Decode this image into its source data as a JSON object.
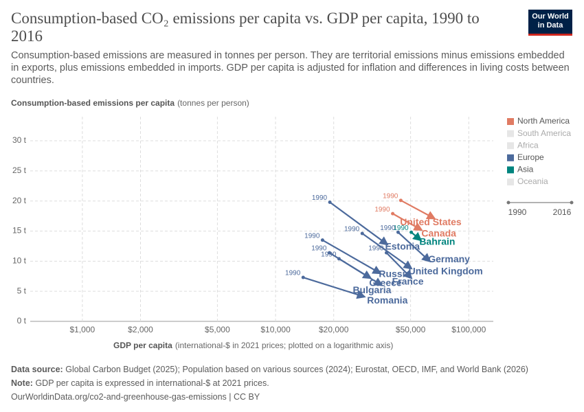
{
  "chart_data": {
    "type": "connected-scatter",
    "title": "Consumption-based CO₂ emissions per capita vs. GDP per capita, 1990 to 2016",
    "subtitle": "Consumption-based emissions are measured in tonnes per person. They are territorial emissions minus emissions embedded in exports, plus emissions embedded in imports. GDP per capita is adjusted for inflation and differences in living costs between countries.",
    "logo": [
      "Our World",
      "in Data"
    ],
    "y_label": "Consumption-based emissions per capita",
    "y_unit": "(tonnes per person)",
    "x_label": "GDP per capita",
    "x_unit": "(international-$ in 2021 prices; plotted on a logarithmic axis)",
    "xscale": "log",
    "xlim": [
      520,
      134000
    ],
    "xticks": [
      {
        "value": 1000,
        "label": "$1,000"
      },
      {
        "value": 2000,
        "label": "$2,000"
      },
      {
        "value": 5000,
        "label": "$5,000"
      },
      {
        "value": 10000,
        "label": "$10,000"
      },
      {
        "value": 20000,
        "label": "$20,000"
      },
      {
        "value": 50000,
        "label": "$50,000"
      },
      {
        "value": 100000,
        "label": "$100,000"
      }
    ],
    "ylim": [
      0,
      34
    ],
    "yticks": [
      {
        "value": 0,
        "label": "0 t"
      },
      {
        "value": 5,
        "label": "5 t"
      },
      {
        "value": 10,
        "label": "10 t"
      },
      {
        "value": 15,
        "label": "15 t"
      },
      {
        "value": 20,
        "label": "20 t"
      },
      {
        "value": 25,
        "label": "25 t"
      },
      {
        "value": 30,
        "label": "30 t"
      }
    ],
    "grid": true,
    "start_label": "1990",
    "timeline": [
      1990,
      2016
    ],
    "legend": [
      {
        "name": "North America",
        "color": "#e07b63"
      },
      {
        "name": "South America",
        "color": "#e6e6e6"
      },
      {
        "name": "Africa",
        "color": "#e6e6e6"
      },
      {
        "name": "Europe",
        "color": "#4c6a9c"
      },
      {
        "name": "Asia",
        "color": "#00847e"
      },
      {
        "name": "Oceania",
        "color": "#e6e6e6"
      }
    ],
    "series": [
      {
        "name": "United States",
        "color": "#e07b63",
        "x": [
          44500,
          66400
        ],
        "values": [
          20.1,
          17.1
        ]
      },
      {
        "name": "Canada",
        "color": "#e07b63",
        "x": [
          40400,
          56900
        ],
        "values": [
          17.9,
          15.2
        ]
      },
      {
        "name": "Bahrain",
        "color": "#00847e",
        "x": [
          50400,
          56400
        ],
        "values": [
          14.8,
          13.5
        ]
      },
      {
        "name": "Estonia",
        "color": "#4c6a9c",
        "x": [
          19100,
          37800
        ],
        "values": [
          19.8,
          12.8
        ]
      },
      {
        "name": "Germany",
        "color": "#4c6a9c",
        "x": [
          43100,
          62700
        ],
        "values": [
          14.8,
          10.0
        ]
      },
      {
        "name": "United Kingdom",
        "color": "#4c6a9c",
        "x": [
          28100,
          50400
        ],
        "values": [
          14.6,
          8.8
        ]
      },
      {
        "name": "France",
        "color": "#4c6a9c",
        "x": [
          37500,
          50400
        ],
        "values": [
          11.4,
          7.2
        ]
      },
      {
        "name": "Russia",
        "color": "#4c6a9c",
        "x": [
          17500,
          34800
        ],
        "values": [
          13.5,
          8.0
        ]
      },
      {
        "name": "Greece",
        "color": "#4c6a9c",
        "x": [
          21300,
          31000
        ],
        "values": [
          10.4,
          7.2
        ]
      },
      {
        "name": "Bulgaria",
        "color": "#4c6a9c",
        "x": [
          19000,
          35400
        ],
        "values": [
          11.4,
          6.0
        ]
      },
      {
        "name": "Romania",
        "color": "#4c6a9c",
        "x": [
          13900,
          28800
        ],
        "values": [
          7.3,
          4.1
        ]
      }
    ],
    "source_label": "Data source:",
    "source": "Global Carbon Budget (2025); Population based on various sources (2024); Eurostat, OECD, IMF, and World Bank (2026)",
    "note_label": "Note:",
    "note": "GDP per capita is expressed in international-$ at 2021 prices.",
    "url": "OurWorldinData.org/co2-and-greenhouse-gas-emissions | CC BY"
  }
}
